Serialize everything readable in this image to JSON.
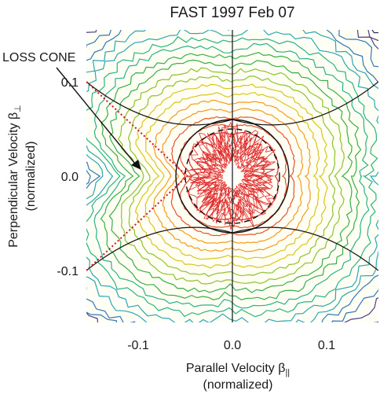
{
  "chart_data": {
    "type": "contour",
    "title": "FAST 1997 Feb 07",
    "xlabel_main": "Parallel Velocity β",
    "xlabel_sub": "||",
    "xlabel_norm": "(normalized)",
    "ylabel_main": "Perpendicular Velocity β",
    "ylabel_sub": "⊥",
    "ylabel_norm": "(normalized)",
    "annotation": "LOSS CONE",
    "xlim": [
      -0.155,
      0.155
    ],
    "ylim": [
      -0.155,
      0.155
    ],
    "x_ticks": [
      {
        "value": -0.1,
        "label": "-0.1"
      },
      {
        "value": 0.0,
        "label": "0.0"
      },
      {
        "value": 0.1,
        "label": "0.1"
      }
    ],
    "y_ticks": [
      {
        "value": 0.1,
        "label": "0.1"
      },
      {
        "value": 0.0,
        "label": "0.0"
      },
      {
        "value": -0.1,
        "label": "-0.1"
      }
    ],
    "circles": [
      {
        "radius": 0.06,
        "style": "solid"
      },
      {
        "radius": 0.05,
        "style": "dashed"
      }
    ],
    "contour_colors": [
      "#3a2a5a",
      "#4a3f86",
      "#2f78b8",
      "#2aa6b8",
      "#27b28a",
      "#35b043",
      "#8cc22e",
      "#d8c51c",
      "#f39a1e",
      "#e8532a",
      "#e02b2b"
    ],
    "core_color": "#e02b2b"
  }
}
